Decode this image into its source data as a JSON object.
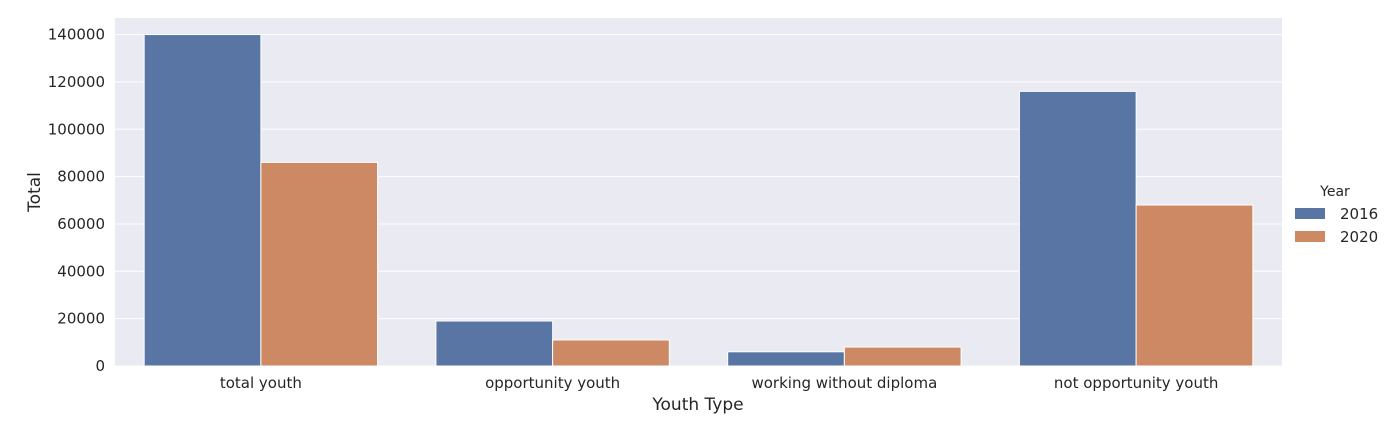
{
  "chart_data": {
    "type": "bar",
    "xlabel": "Youth Type",
    "ylabel": "Total",
    "categories": [
      "total youth",
      "opportunity youth",
      "working without diploma",
      "not opportunity youth"
    ],
    "series": [
      {
        "name": "2016",
        "values": [
          140000,
          19000,
          6000,
          116000
        ],
        "color": "#5975a4"
      },
      {
        "name": "2020",
        "values": [
          86000,
          11000,
          8000,
          68000
        ],
        "color": "#cc8963"
      }
    ],
    "ylim": [
      0,
      147000
    ],
    "yticks": [
      0,
      20000,
      40000,
      60000,
      80000,
      100000,
      120000,
      140000
    ],
    "grid": true,
    "legend": {
      "title": "Year",
      "placement": "right"
    },
    "background_color": "#eaeaf2"
  }
}
